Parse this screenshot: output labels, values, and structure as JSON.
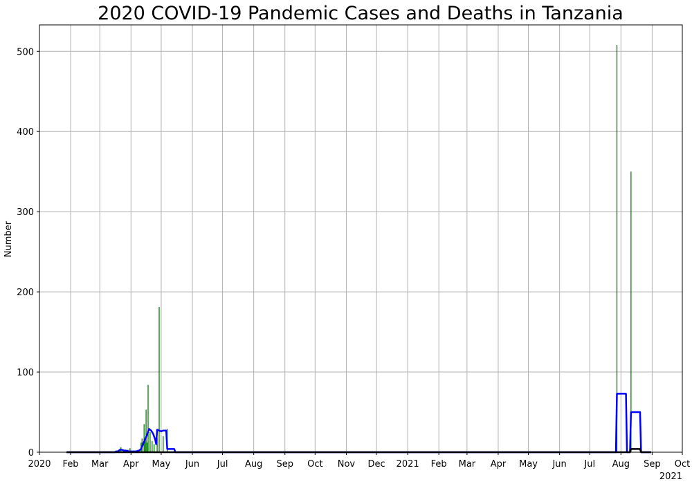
{
  "chart_data": {
    "type": "line",
    "title": "2020 COVID-19 Pandemic Cases and Deaths in Tanzania",
    "xlabel": "",
    "ylabel": "Number",
    "xlim": [
      "2020-01-01",
      "2021-10-01"
    ],
    "ylim": [
      0,
      533
    ],
    "grid": true,
    "x_ticks": [
      {
        "date": "2020-01-01",
        "label": "2020"
      },
      {
        "date": "2020-02-01",
        "label": "Feb"
      },
      {
        "date": "2020-03-01",
        "label": "Mar"
      },
      {
        "date": "2020-04-01",
        "label": "Apr"
      },
      {
        "date": "2020-05-01",
        "label": "May"
      },
      {
        "date": "2020-06-01",
        "label": "Jun"
      },
      {
        "date": "2020-07-01",
        "label": "Jul"
      },
      {
        "date": "2020-08-01",
        "label": "Aug"
      },
      {
        "date": "2020-09-01",
        "label": "Sep"
      },
      {
        "date": "2020-10-01",
        "label": "Oct"
      },
      {
        "date": "2020-11-01",
        "label": "Nov"
      },
      {
        "date": "2020-12-01",
        "label": "Dec"
      },
      {
        "date": "2021-01-01",
        "label": "2021"
      },
      {
        "date": "2021-02-01",
        "label": "Feb"
      },
      {
        "date": "2021-03-01",
        "label": "Mar"
      },
      {
        "date": "2021-04-01",
        "label": "Apr"
      },
      {
        "date": "2021-05-01",
        "label": "May"
      },
      {
        "date": "2021-06-01",
        "label": "Jun"
      },
      {
        "date": "2021-07-01",
        "label": "Jul"
      },
      {
        "date": "2021-08-01",
        "label": "Aug"
      },
      {
        "date": "2021-09-01",
        "label": "Sep"
      },
      {
        "date": "2021-10-01",
        "label": "Oct"
      }
    ],
    "x_offset_label": "2021",
    "y_ticks": [
      0,
      100,
      200,
      300,
      400,
      500
    ],
    "colors": {
      "daily_cases": "#008000",
      "cases_avg": "#0000ff",
      "deaths_avg": "#000000",
      "grid": "#b0b0b0"
    },
    "series": [
      {
        "style": "bars",
        "color": "#008000",
        "points": [
          [
            "2020-03-16",
            1
          ],
          [
            "2020-03-18",
            2
          ],
          [
            "2020-03-20",
            3
          ],
          [
            "2020-03-22",
            6
          ],
          [
            "2020-03-25",
            1
          ],
          [
            "2020-03-29",
            3
          ],
          [
            "2020-03-31",
            5
          ],
          [
            "2020-04-03",
            2
          ],
          [
            "2020-04-06",
            2
          ],
          [
            "2020-04-08",
            3
          ],
          [
            "2020-04-11",
            12
          ],
          [
            "2020-04-12",
            17
          ],
          [
            "2020-04-14",
            35
          ],
          [
            "2020-04-15",
            14
          ],
          [
            "2020-04-16",
            53
          ],
          [
            "2020-04-17",
            12
          ],
          [
            "2020-04-18",
            84
          ],
          [
            "2020-04-20",
            25
          ],
          [
            "2020-04-22",
            14
          ],
          [
            "2020-04-24",
            10
          ],
          [
            "2020-04-27",
            18
          ],
          [
            "2020-04-29",
            181
          ],
          [
            "2020-05-03",
            20
          ],
          [
            "2020-05-07",
            29
          ],
          [
            "2021-07-28",
            508
          ],
          [
            "2021-08-11",
            350
          ]
        ]
      },
      {
        "style": "line",
        "color": "#0000ff",
        "points": [
          [
            "2020-01-28",
            0
          ],
          [
            "2020-03-16",
            0
          ],
          [
            "2020-03-17",
            1
          ],
          [
            "2020-03-19",
            1
          ],
          [
            "2020-03-21",
            3
          ],
          [
            "2020-03-23",
            3
          ],
          [
            "2020-03-25",
            2
          ],
          [
            "2020-03-27",
            2
          ],
          [
            "2020-03-30",
            1
          ],
          [
            "2020-04-02",
            1
          ],
          [
            "2020-04-06",
            1
          ],
          [
            "2020-04-09",
            2
          ],
          [
            "2020-04-11",
            4
          ],
          [
            "2020-04-13",
            10
          ],
          [
            "2020-04-15",
            16
          ],
          [
            "2020-04-17",
            22
          ],
          [
            "2020-04-19",
            29
          ],
          [
            "2020-04-21",
            27
          ],
          [
            "2020-04-23",
            23
          ],
          [
            "2020-04-25",
            16
          ],
          [
            "2020-04-26",
            10
          ],
          [
            "2020-04-27",
            28
          ],
          [
            "2020-04-29",
            27
          ],
          [
            "2020-05-01",
            26
          ],
          [
            "2020-05-03",
            27
          ],
          [
            "2020-05-06",
            27
          ],
          [
            "2020-05-07",
            4
          ],
          [
            "2020-05-14",
            4
          ],
          [
            "2020-05-15",
            0
          ],
          [
            "2021-07-27",
            0
          ],
          [
            "2021-07-28",
            73
          ],
          [
            "2021-08-06",
            73
          ],
          [
            "2021-08-07",
            0
          ],
          [
            "2021-08-10",
            0
          ],
          [
            "2021-08-11",
            50
          ],
          [
            "2021-08-20",
            50
          ],
          [
            "2021-08-21",
            0
          ],
          [
            "2021-08-31",
            0
          ]
        ]
      },
      {
        "style": "line",
        "color": "#000000",
        "points": [
          [
            "2020-01-28",
            0
          ],
          [
            "2021-08-10",
            0
          ],
          [
            "2021-08-11",
            4
          ],
          [
            "2021-08-20",
            4
          ],
          [
            "2021-08-21",
            0
          ],
          [
            "2021-08-31",
            0
          ]
        ]
      }
    ]
  }
}
